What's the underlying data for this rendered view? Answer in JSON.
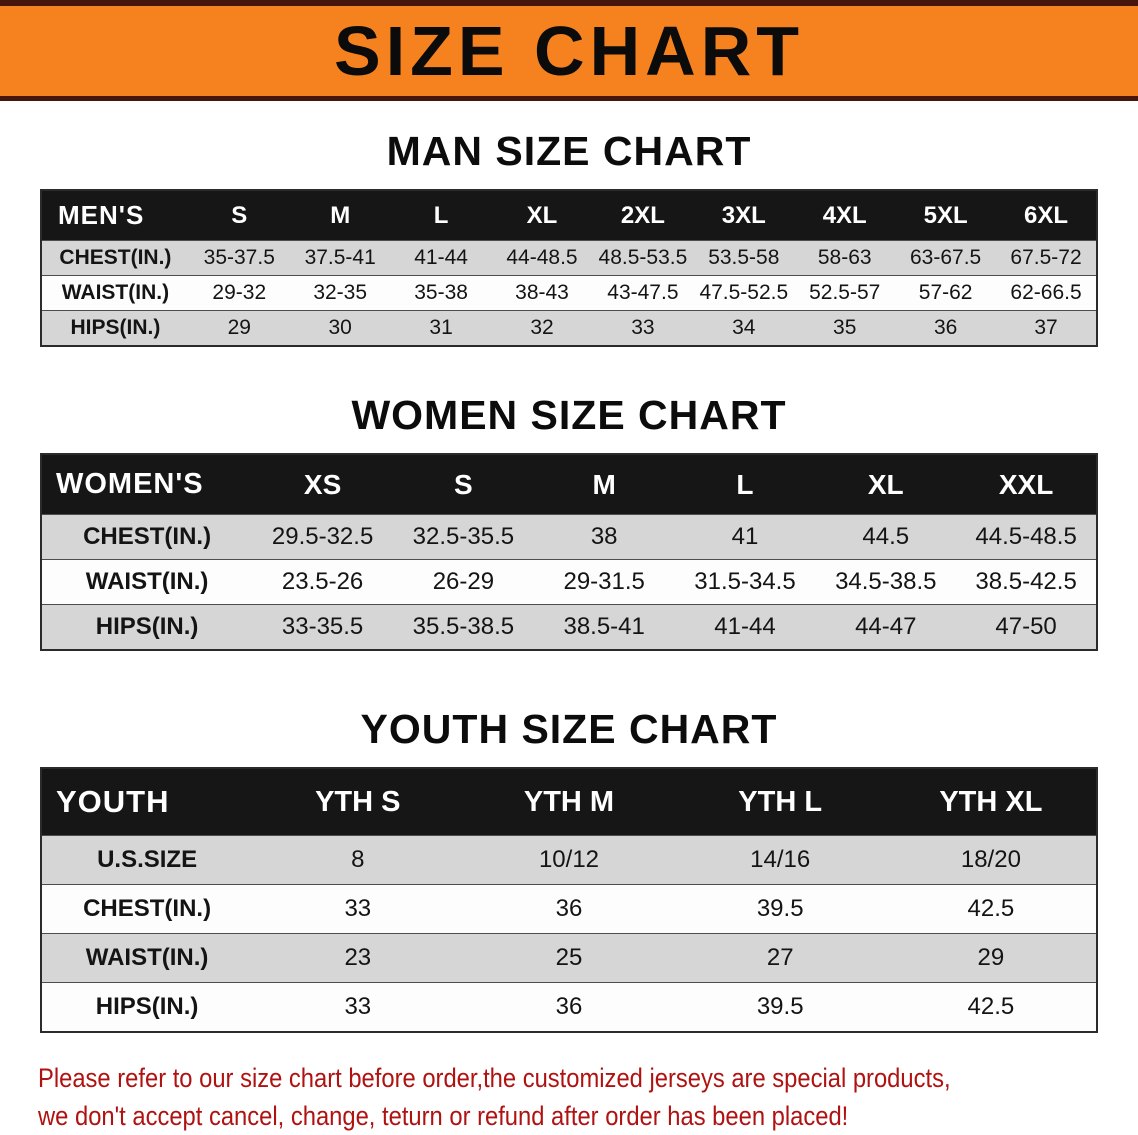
{
  "banner": {
    "title": "SIZE CHART"
  },
  "chart_data": [
    {
      "type": "table",
      "id": "men",
      "title": "MAN SIZE CHART",
      "columns": [
        "MEN'S",
        "S",
        "M",
        "L",
        "XL",
        "2XL",
        "3XL",
        "4XL",
        "5XL",
        "6XL"
      ],
      "rows": [
        [
          "CHEST(IN.)",
          "35-37.5",
          "37.5-41",
          "41-44",
          "44-48.5",
          "48.5-53.5",
          "53.5-58",
          "58-63",
          "63-67.5",
          "67.5-72"
        ],
        [
          "WAIST(IN.)",
          "29-32",
          "32-35",
          "35-38",
          "38-43",
          "43-47.5",
          "47.5-52.5",
          "52.5-57",
          "57-62",
          "62-66.5"
        ],
        [
          "HIPS(IN.)",
          "29",
          "30",
          "31",
          "32",
          "33",
          "34",
          "35",
          "36",
          "37"
        ]
      ]
    },
    {
      "type": "table",
      "id": "women",
      "title": "WOMEN SIZE CHART",
      "columns": [
        "WOMEN'S",
        "XS",
        "S",
        "M",
        "L",
        "XL",
        "XXL"
      ],
      "rows": [
        [
          "CHEST(IN.)",
          "29.5-32.5",
          "32.5-35.5",
          "38",
          "41",
          "44.5",
          "44.5-48.5"
        ],
        [
          "WAIST(IN.)",
          "23.5-26",
          "26-29",
          "29-31.5",
          "31.5-34.5",
          "34.5-38.5",
          "38.5-42.5"
        ],
        [
          "HIPS(IN.)",
          "33-35.5",
          "35.5-38.5",
          "38.5-41",
          "41-44",
          "44-47",
          "47-50"
        ]
      ]
    },
    {
      "type": "table",
      "id": "youth",
      "title": "YOUTH SIZE CHART",
      "columns": [
        "YOUTH",
        "YTH S",
        "YTH M",
        "YTH L",
        "YTH XL"
      ],
      "rows": [
        [
          "U.S.SIZE",
          "8",
          "10/12",
          "14/16",
          "18/20"
        ],
        [
          "CHEST(IN.)",
          "33",
          "36",
          "39.5",
          "42.5"
        ],
        [
          "WAIST(IN.)",
          "23",
          "25",
          "27",
          "29"
        ],
        [
          "HIPS(IN.)",
          "33",
          "36",
          "39.5",
          "42.5"
        ]
      ]
    }
  ],
  "disclaimer": {
    "line1": "Please refer to our size chart before order,the customized jerseys are special products,",
    "line2": "we don't accept cancel, change, teturn or refund after order has been placed!"
  },
  "colors": {
    "banner_bg": "#f5821f",
    "banner_edge": "#46150c",
    "table_header_bg": "#161616",
    "row_shade": "#d6d6d6",
    "disclaimer_red": "#b01212"
  }
}
